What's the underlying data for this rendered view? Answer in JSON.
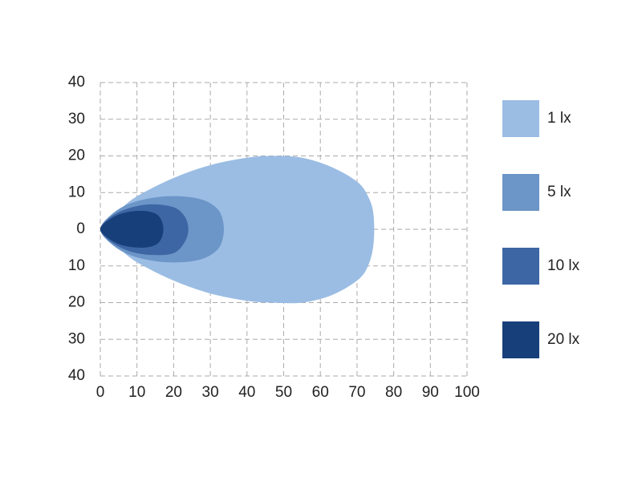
{
  "chart_data": {
    "type": "contour",
    "xlim": [
      0,
      100
    ],
    "xticks": [
      0,
      10,
      20,
      30,
      40,
      50,
      60,
      70,
      80,
      90,
      100
    ],
    "ylim": [
      -40,
      40
    ],
    "yticks": [
      {
        "value": 40,
        "label": "40"
      },
      {
        "value": 30,
        "label": "30"
      },
      {
        "value": 20,
        "label": "20"
      },
      {
        "value": 10,
        "label": "10"
      },
      {
        "value": 0,
        "label": "0"
      },
      {
        "value": -10,
        "label": "10"
      },
      {
        "value": -20,
        "label": "20"
      },
      {
        "value": -30,
        "label": "30"
      },
      {
        "value": -40,
        "label": "40"
      }
    ],
    "grid": true,
    "legend": "right",
    "series": [
      {
        "name": "1 lx",
        "color": "#9bbde4",
        "x": [
          0,
          5,
          10,
          20,
          30,
          40,
          47,
          55,
          63,
          70,
          73,
          74.5,
          74.5,
          73,
          70,
          63,
          55,
          47,
          40,
          30,
          20,
          10,
          5
        ],
        "y": [
          0,
          5,
          9,
          14,
          17.5,
          19.5,
          20,
          19.5,
          17,
          13,
          9,
          4,
          -4,
          -10,
          -14,
          -18,
          -20,
          -20,
          -19.5,
          -17.5,
          -14,
          -9,
          -5
        ]
      },
      {
        "name": "5 lx",
        "color": "#6c95c8",
        "x": [
          0,
          3,
          8,
          15,
          22,
          28,
          32,
          33.5,
          33.5,
          32,
          28,
          22,
          15,
          8,
          3
        ],
        "y": [
          0,
          4,
          7,
          8.7,
          9,
          8,
          5.5,
          2,
          -2,
          -5.5,
          -8,
          -9,
          -8.7,
          -7,
          -4
        ]
      },
      {
        "name": "10 lx",
        "color": "#3d66a4",
        "x": [
          0,
          3,
          8,
          14,
          20,
          23,
          24,
          23,
          20,
          14,
          8,
          3
        ],
        "y": [
          0,
          3.5,
          5.8,
          6.8,
          6,
          3.5,
          0,
          -3.5,
          -6.5,
          -7,
          -6,
          -3.5
        ]
      },
      {
        "name": "20 lx",
        "color": "#173f79",
        "x": [
          0,
          3,
          7,
          12,
          15.5,
          17,
          17,
          15.5,
          12,
          7,
          3
        ],
        "y": [
          0,
          3,
          4.6,
          5,
          4,
          1.5,
          -1.5,
          -4,
          -5,
          -4.6,
          -3
        ]
      }
    ]
  }
}
